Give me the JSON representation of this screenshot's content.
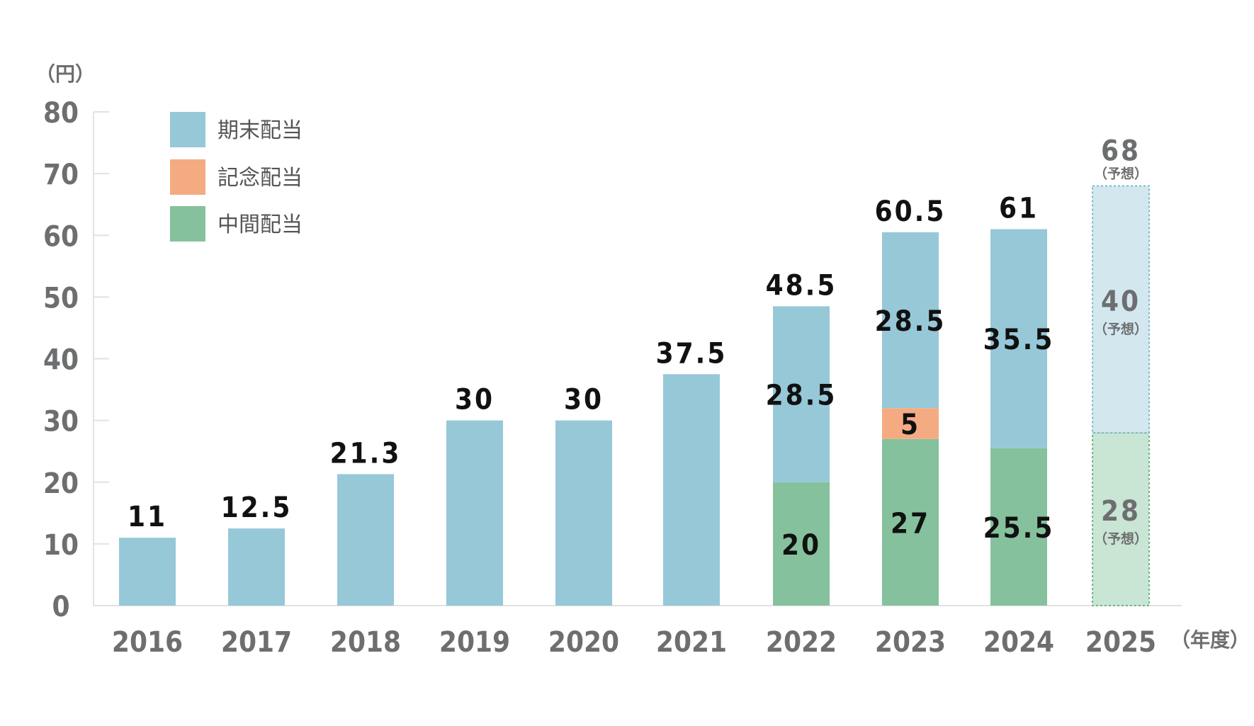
{
  "chart_data": {
    "type": "bar",
    "stacked": true,
    "y_unit_label": "（円）",
    "x_unit_label": "（年度）",
    "ylim": [
      0,
      80
    ],
    "yticks": [
      0,
      10,
      20,
      30,
      40,
      50,
      60,
      70,
      80
    ],
    "grid": false,
    "legend_position": "top-left",
    "categories": [
      "2016",
      "2017",
      "2018",
      "2019",
      "2020",
      "2021",
      "2022",
      "2023",
      "2024",
      "2025"
    ],
    "series": [
      {
        "name": "中間配当",
        "color": "#85c19d",
        "forecast_color": "#c9e5d3",
        "values": [
          null,
          null,
          null,
          null,
          null,
          null,
          20,
          27,
          25.5,
          28
        ],
        "labels": [
          "",
          "",
          "",
          "",
          "",
          "",
          "20",
          "27",
          "25.5",
          "28"
        ]
      },
      {
        "name": "記念配当",
        "color": "#f5ab82",
        "forecast_color": "#f5ab82",
        "values": [
          null,
          null,
          null,
          null,
          null,
          null,
          null,
          5,
          null,
          null
        ],
        "labels": [
          "",
          "",
          "",
          "",
          "",
          "",
          "",
          "5",
          "",
          ""
        ]
      },
      {
        "name": "期末配当",
        "color": "#96c8d8",
        "forecast_color": "#d3e7ef",
        "values": [
          11,
          12.5,
          21.3,
          30,
          30,
          37.5,
          28.5,
          28.5,
          35.5,
          40
        ],
        "labels": [
          "",
          "",
          "",
          "",
          "",
          "",
          "28.5",
          "28.5",
          "35.5",
          "40"
        ]
      }
    ],
    "legend_order": [
      "期末配当",
      "記念配当",
      "中間配当"
    ],
    "totals": [
      11,
      12.5,
      21.3,
      30,
      30,
      37.5,
      48.5,
      60.5,
      61,
      68
    ],
    "total_labels": [
      "11",
      "12.5",
      "21.3",
      "30",
      "30",
      "37.5",
      "48.5",
      "60.5",
      "61",
      "68"
    ],
    "forecast": [
      false,
      false,
      false,
      false,
      false,
      false,
      false,
      false,
      false,
      true
    ],
    "forecast_note": "（予想）"
  }
}
